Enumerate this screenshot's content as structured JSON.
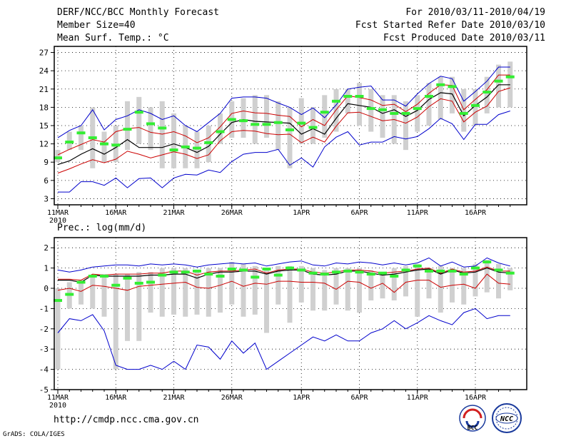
{
  "header": {
    "title": "DERF/NCC/BCC Monthly Forecast",
    "member_size": "Member Size=40",
    "variable": "Mean Surf. Temp.: °C",
    "period": "For 2010/03/11-2010/04/19",
    "started": "Fcst Started Refer Date 2010/03/10",
    "produced": "Fcst Produced Date 2010/03/11"
  },
  "footer": {
    "url": "http://cmdp.ncc.cma.gov.cn",
    "grads": "GrADS: COLA/IGES"
  },
  "logos": {
    "bcc": "BCC",
    "ncc": "NCC"
  },
  "colors": {
    "mean": "#000000",
    "spread": "#cc0000",
    "envelope": "#0000cc",
    "box": "#d0d0d0",
    "median": "#33ee33",
    "grid": "#000000"
  },
  "chart_data": [
    {
      "type": "line",
      "name": "temperature",
      "panel_label": "",
      "ylim": [
        2,
        28
      ],
      "yticks": [
        3,
        6,
        9,
        12,
        15,
        18,
        21,
        24,
        27
      ],
      "xticks": [
        {
          "day": 1,
          "label": "11MAR"
        },
        {
          "day": 6,
          "label": "16MAR"
        },
        {
          "day": 11,
          "label": "21MAR"
        },
        {
          "day": 16,
          "label": "26MAR"
        },
        {
          "day": 22,
          "label": "1APR"
        },
        {
          "day": 27,
          "label": "6APR"
        },
        {
          "day": 32,
          "label": "11APR"
        },
        {
          "day": 37,
          "label": "16APR"
        }
      ],
      "year_label": "2010",
      "x": [
        1,
        2,
        3,
        4,
        5,
        6,
        7,
        8,
        9,
        10,
        11,
        12,
        13,
        14,
        15,
        16,
        17,
        18,
        19,
        20,
        21,
        22,
        23,
        24,
        25,
        26,
        27,
        28,
        29,
        30,
        31,
        32,
        33,
        34,
        35,
        36,
        37,
        38,
        39,
        40
      ],
      "series": [
        {
          "name": "max",
          "values": [
            13,
            14.2,
            15,
            17.6,
            14.3,
            16,
            16.6,
            17.6,
            17,
            16,
            16.6,
            15,
            14,
            15.5,
            17,
            19.5,
            19.7,
            19.7,
            19.5,
            18.7,
            18,
            16.8,
            17.9,
            16.3,
            18.4,
            21,
            21.3,
            21.5,
            19.2,
            19.2,
            18.2,
            20.2,
            21.9,
            23.1,
            22.7,
            19,
            20.6,
            22.3,
            24.6,
            24.6
          ]
        },
        {
          "name": "upper",
          "values": [
            10.2,
            11.1,
            11.9,
            12.7,
            12.3,
            14,
            14.5,
            14.7,
            13.9,
            13.6,
            14,
            13.3,
            12.2,
            13,
            14.8,
            17,
            17.4,
            17.1,
            17,
            16.7,
            16.5,
            14.8,
            16,
            15,
            17.6,
            19.9,
            19.6,
            19.2,
            18.3,
            18.5,
            17.3,
            18.5,
            20.3,
            21.7,
            21.6,
            17.6,
            19.3,
            20.9,
            23.3,
            23.3
          ]
        },
        {
          "name": "mean",
          "values": [
            8.6,
            9.2,
            10.3,
            11.2,
            10.3,
            11.4,
            12.7,
            11.4,
            11.4,
            11.4,
            12,
            11.4,
            10.6,
            11.6,
            13.6,
            15.5,
            16,
            15.7,
            15.6,
            15.5,
            15.4,
            13.6,
            14.5,
            13.6,
            16.2,
            18.6,
            18.3,
            18,
            17,
            17.6,
            16.5,
            17.5,
            19.3,
            20.4,
            20.2,
            16.6,
            18.3,
            19.7,
            21.7,
            21.7
          ]
        },
        {
          "name": "lower",
          "values": [
            7.2,
            7.9,
            8.7,
            9.4,
            8.9,
            9.5,
            10.8,
            10.3,
            9.7,
            10.2,
            10.7,
            10.3,
            9.6,
            10.2,
            12.5,
            14,
            14.2,
            14.1,
            13.7,
            13.5,
            13.6,
            12.2,
            13.1,
            12.3,
            14.9,
            17.1,
            17.2,
            16.5,
            15.8,
            16,
            15.4,
            16.4,
            18.1,
            19.4,
            19,
            15.6,
            17.2,
            18.2,
            20.6,
            21.2
          ]
        },
        {
          "name": "min",
          "values": [
            4.1,
            4.1,
            5.8,
            5.8,
            5.2,
            6.4,
            4.8,
            6.3,
            6.4,
            4.8,
            6.4,
            7,
            6.9,
            7.7,
            7.3,
            9.1,
            10.3,
            10.6,
            10.6,
            11.1,
            8.5,
            9.7,
            8.2,
            11.5,
            13.1,
            14,
            11.8,
            12.3,
            12.3,
            13.2,
            12.8,
            13.2,
            14.5,
            16.2,
            15.3,
            12.7,
            15.2,
            15.2,
            16.8,
            17.4
          ]
        }
      ],
      "boxes": [
        [
          9,
          11
        ],
        [
          11,
          14
        ],
        [
          11,
          15
        ],
        [
          8,
          18
        ],
        [
          9,
          14
        ],
        [
          9,
          15
        ],
        [
          11,
          19
        ],
        [
          12,
          19.7
        ],
        [
          11,
          18
        ],
        [
          8,
          19
        ],
        [
          8,
          17
        ],
        [
          8,
          15
        ],
        [
          8,
          14
        ],
        [
          9,
          15
        ],
        [
          12,
          17
        ],
        [
          13,
          19
        ],
        [
          13,
          19.5
        ],
        [
          12,
          20
        ],
        [
          13,
          20
        ],
        [
          11,
          19
        ],
        [
          8,
          18
        ],
        [
          12,
          19.5
        ],
        [
          12,
          18
        ],
        [
          13,
          20
        ],
        [
          14,
          21
        ],
        [
          17,
          21
        ],
        [
          15,
          22
        ],
        [
          14,
          21
        ],
        [
          13,
          20
        ],
        [
          12,
          20
        ],
        [
          11,
          19
        ],
        [
          14,
          20
        ],
        [
          15,
          22
        ],
        [
          16,
          23
        ],
        [
          17,
          23
        ],
        [
          14,
          21
        ],
        [
          15,
          21
        ],
        [
          17,
          23
        ],
        [
          18,
          25
        ],
        [
          18,
          25.5
        ]
      ],
      "medians": [
        9.7,
        12.3,
        13.8,
        13,
        12,
        11.8,
        14.4,
        17.2,
        15.3,
        14.6,
        11,
        11.5,
        11.3,
        12.2,
        14,
        16,
        15.8,
        15.2,
        15.2,
        15.5,
        14.3,
        15.4,
        14.7,
        17.2,
        19,
        19.8,
        19.8,
        17.8,
        17.6,
        17,
        17,
        17.8,
        19.8,
        21.7,
        21.4,
        17,
        18.3,
        20.5,
        22.3,
        23
      ]
    },
    {
      "type": "line",
      "name": "precipitation",
      "panel_label": "Prec.: log(mm/d)",
      "ylim": [
        -5,
        2.5
      ],
      "yticks": [
        -5,
        -4,
        -3,
        -2,
        -1,
        0,
        1,
        2
      ],
      "xticks": [
        {
          "day": 1,
          "label": "11MAR"
        },
        {
          "day": 6,
          "label": "16MAR"
        },
        {
          "day": 11,
          "label": "21MAR"
        },
        {
          "day": 16,
          "label": "26MAR"
        },
        {
          "day": 22,
          "label": "1APR"
        },
        {
          "day": 27,
          "label": "6APR"
        },
        {
          "day": 32,
          "label": "11APR"
        },
        {
          "day": 37,
          "label": "16APR"
        }
      ],
      "year_label": "2010",
      "x": [
        1,
        2,
        3,
        4,
        5,
        6,
        7,
        8,
        9,
        10,
        11,
        12,
        13,
        14,
        15,
        16,
        17,
        18,
        19,
        20,
        21,
        22,
        23,
        24,
        25,
        26,
        27,
        28,
        29,
        30,
        31,
        32,
        33,
        34,
        35,
        36,
        37,
        38,
        39,
        40
      ],
      "series": [
        {
          "name": "max",
          "values": [
            0.9,
            0.8,
            0.9,
            1.05,
            1.1,
            1.15,
            1.15,
            1.1,
            1.2,
            1.15,
            1.2,
            1.15,
            1.05,
            1.15,
            1.2,
            1.25,
            1.2,
            1.25,
            1.1,
            1.2,
            1.3,
            1.35,
            1.15,
            1.1,
            1.25,
            1.2,
            1.3,
            1.25,
            1.15,
            1.25,
            1.15,
            1.25,
            1.5,
            1.1,
            1.3,
            1.05,
            1.1,
            1.5,
            1.25,
            1.1
          ]
        },
        {
          "name": "upper",
          "values": [
            0.45,
            0.45,
            0.4,
            0.7,
            0.65,
            0.7,
            0.7,
            0.7,
            0.75,
            0.75,
            0.85,
            0.85,
            0.65,
            0.8,
            0.85,
            0.85,
            0.9,
            0.95,
            0.75,
            0.9,
            0.95,
            0.95,
            0.8,
            0.75,
            0.8,
            0.9,
            0.9,
            0.85,
            0.75,
            0.8,
            0.85,
            0.95,
            1.0,
            0.75,
            0.95,
            0.8,
            0.85,
            1.05,
            0.85,
            0.85
          ]
        },
        {
          "name": "mean",
          "values": [
            0.4,
            0.4,
            0.3,
            0.65,
            0.6,
            0.6,
            0.6,
            0.6,
            0.65,
            0.65,
            0.7,
            0.7,
            0.5,
            0.7,
            0.8,
            0.8,
            0.85,
            0.85,
            0.7,
            0.85,
            0.9,
            0.9,
            0.7,
            0.65,
            0.7,
            0.85,
            0.85,
            0.75,
            0.65,
            0.7,
            0.8,
            0.9,
            0.95,
            0.7,
            0.9,
            0.75,
            0.8,
            1.0,
            0.8,
            0.75
          ]
        },
        {
          "name": "lower",
          "values": [
            -0.1,
            0.0,
            -0.15,
            0.15,
            0.1,
            0.0,
            -0.1,
            0.1,
            0.15,
            0.2,
            0.25,
            0.3,
            0.05,
            0.0,
            0.15,
            0.35,
            0.1,
            0.25,
            0.2,
            0.35,
            0.35,
            0.3,
            0.3,
            0.25,
            -0.05,
            0.35,
            0.3,
            0.0,
            0.25,
            -0.2,
            0.3,
            0.4,
            0.4,
            0.05,
            0.15,
            0.2,
            0.0,
            0.7,
            0.25,
            0.2
          ]
        },
        {
          "name": "min",
          "values": [
            -2.2,
            -1.5,
            -1.6,
            -1.3,
            -2.1,
            -3.8,
            -4.0,
            -4.0,
            -3.8,
            -4.0,
            -3.6,
            -4.0,
            -2.8,
            -2.9,
            -3.5,
            -2.6,
            -3.2,
            -2.7,
            -4.0,
            -3.6,
            -3.2,
            -2.8,
            -2.4,
            -2.6,
            -2.3,
            -2.6,
            -2.6,
            -2.2,
            -2.0,
            -1.6,
            -2.0,
            -1.7,
            -1.35,
            -1.6,
            -1.8,
            -1.2,
            -1.0,
            -1.5,
            -1.35,
            -1.35
          ]
        }
      ],
      "boxes": [
        [
          -4,
          0
        ],
        [
          -1,
          0.3
        ],
        [
          -0.8,
          0.4
        ],
        [
          -1,
          0.6
        ],
        [
          -1.4,
          0.7
        ],
        [
          -4,
          0.7
        ],
        [
          -2.6,
          0.7
        ],
        [
          -2.6,
          0.8
        ],
        [
          -1.2,
          0.8
        ],
        [
          -1.4,
          1.0
        ],
        [
          -1.3,
          1.0
        ],
        [
          -1.4,
          1.0
        ],
        [
          -1.3,
          0.9
        ],
        [
          -1.4,
          1.0
        ],
        [
          -1.2,
          1.0
        ],
        [
          -0.8,
          1.3
        ],
        [
          -1.4,
          1.2
        ],
        [
          -1.3,
          1.1
        ],
        [
          -2.2,
          1.0
        ],
        [
          -0.8,
          1.1
        ],
        [
          -1.7,
          1.1
        ],
        [
          -0.7,
          1.1
        ],
        [
          -1.1,
          1.0
        ],
        [
          -1.1,
          0.9
        ],
        [
          -0.8,
          1.0
        ],
        [
          -1.1,
          1.0
        ],
        [
          -1.2,
          1.0
        ],
        [
          -0.6,
          0.9
        ],
        [
          -0.5,
          0.8
        ],
        [
          -0.6,
          1.0
        ],
        [
          -0.4,
          1.1
        ],
        [
          -1.4,
          1.2
        ],
        [
          -0.5,
          1.0
        ],
        [
          -1.2,
          1.1
        ],
        [
          -0.7,
          1.0
        ],
        [
          -0.8,
          1.0
        ],
        [
          -0.4,
          1.2
        ],
        [
          -0.2,
          1.4
        ],
        [
          -0.5,
          1.2
        ],
        [
          -0.1,
          1.0
        ]
      ],
      "medians": [
        -0.6,
        -0.3,
        0.3,
        0.6,
        0.6,
        0.15,
        0.5,
        0.25,
        0.3,
        0.65,
        0.8,
        0.8,
        0.85,
        0.7,
        0.6,
        0.95,
        0.9,
        0.55,
        0.95,
        0.65,
        1.0,
        0.9,
        0.75,
        0.7,
        0.8,
        0.85,
        0.8,
        0.7,
        0.75,
        0.6,
        0.9,
        1.1,
        0.85,
        0.85,
        0.85,
        0.7,
        1.0,
        1.3,
        0.9,
        0.75
      ]
    }
  ]
}
